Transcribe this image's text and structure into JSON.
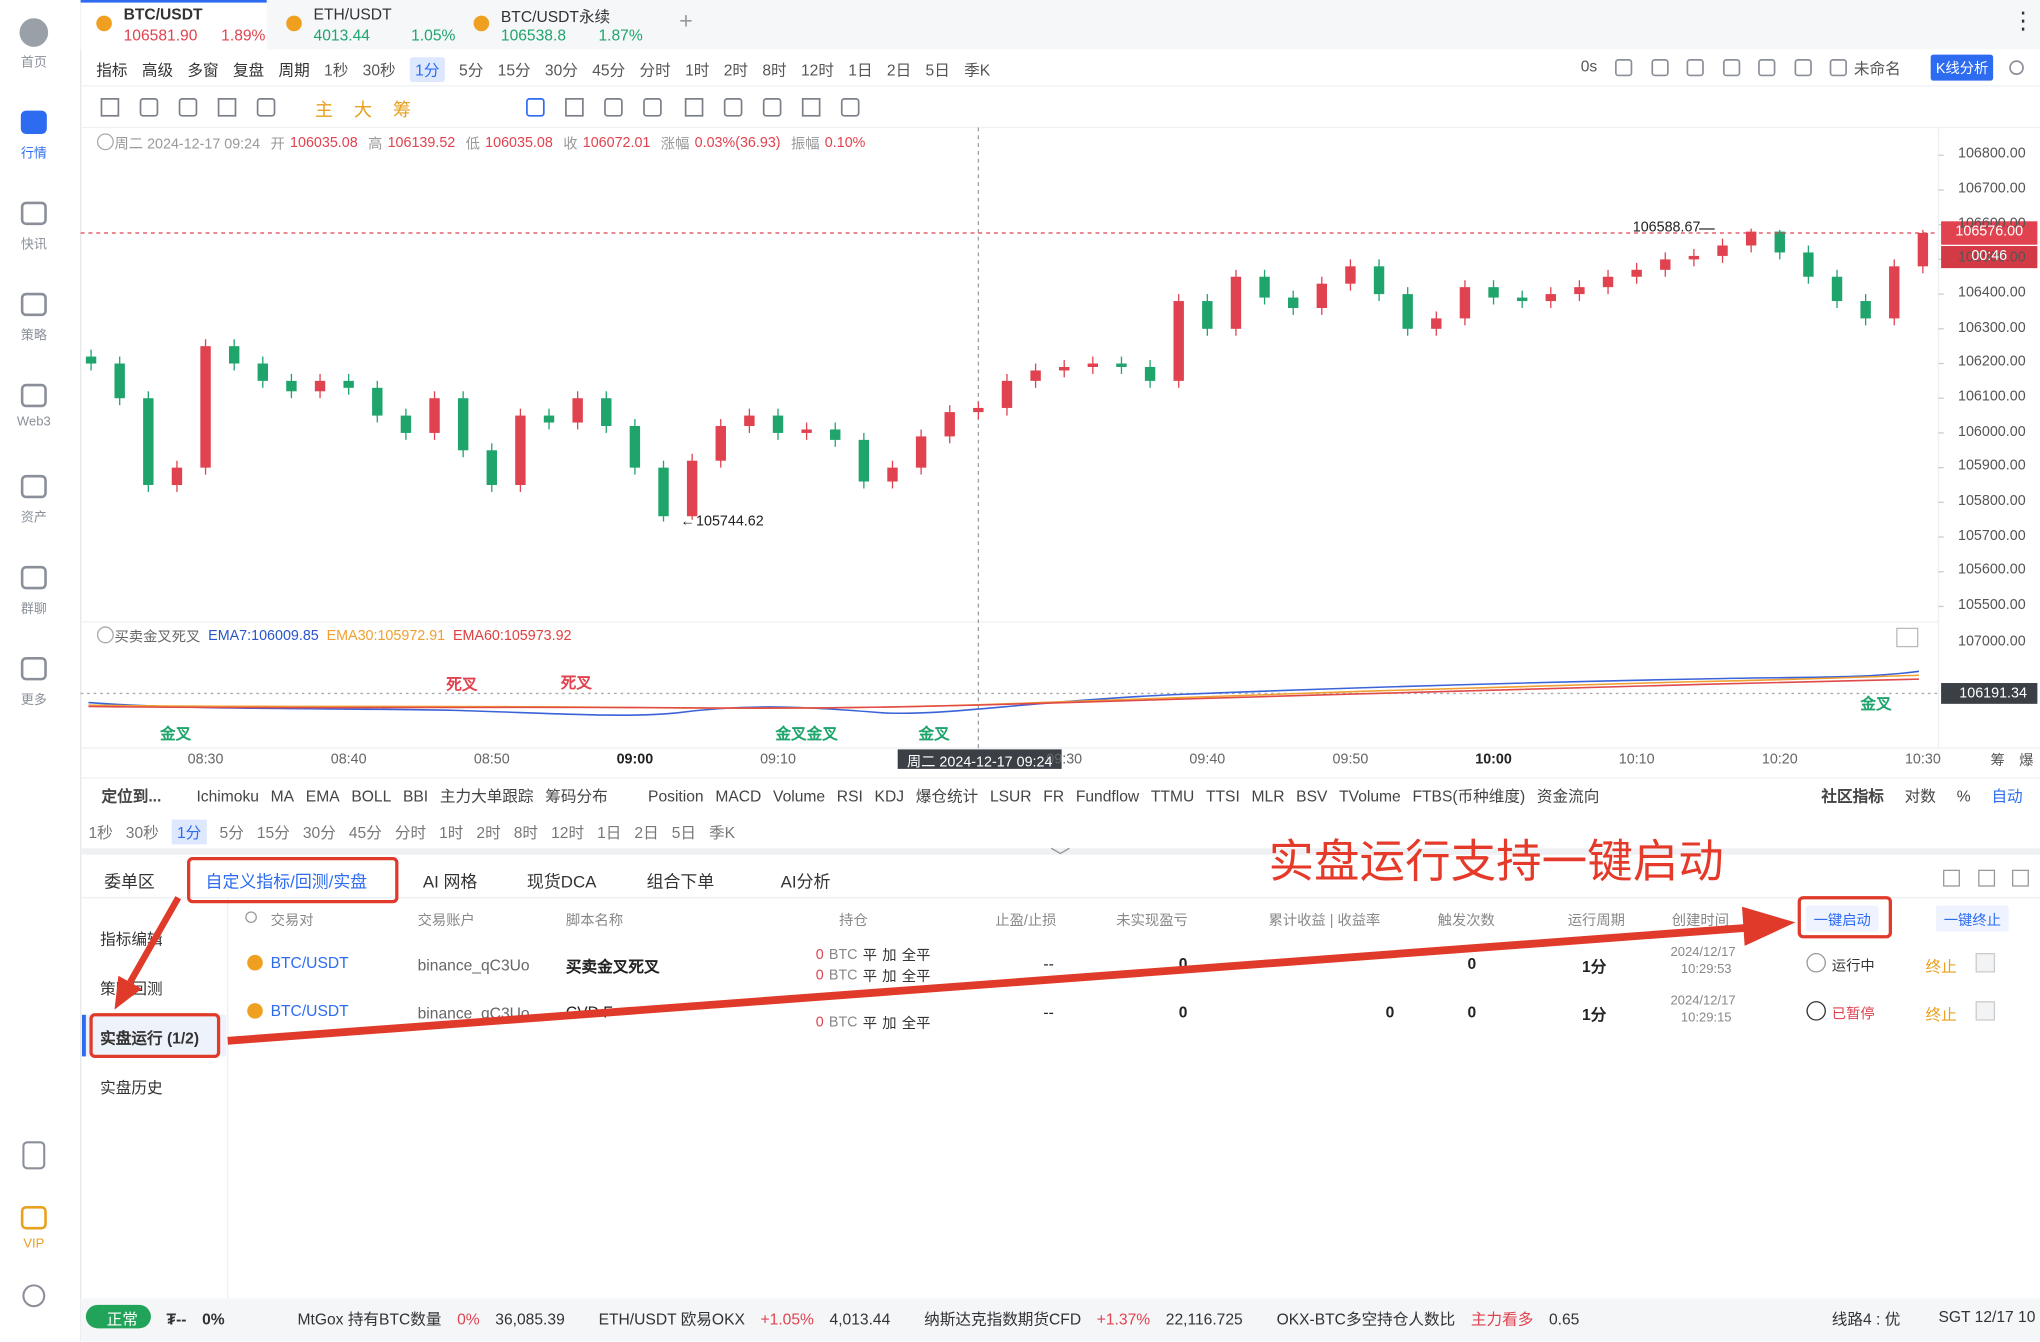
{
  "sidebar": [
    "首页",
    "行情",
    "快讯",
    "策略",
    "Web3",
    "资产",
    "群聊",
    "更多",
    "VIP"
  ],
  "tabs": [
    {
      "symbol": "BTC/USDT",
      "price": "106581.90",
      "change": "1.89%"
    },
    {
      "symbol": "ETH/USDT",
      "price": "4013.44",
      "change": "1.05%"
    },
    {
      "symbol": "BTC/USDT永续",
      "price": "106538.8",
      "change": "1.87%"
    }
  ],
  "toolbar": {
    "left": [
      "指标",
      "高级",
      "多窗",
      "复盘",
      "周期"
    ],
    "periods": [
      "1秒",
      "30秒",
      "1分",
      "5分",
      "15分",
      "30分",
      "45分",
      "分时",
      "1时",
      "2时",
      "8时",
      "12时",
      "1日",
      "2日",
      "5日",
      "季K"
    ],
    "active_period": "1分",
    "right": [
      "0s",
      "未命名",
      "K线分析"
    ]
  },
  "drawing_tools": [
    "主",
    "大",
    "筹"
  ],
  "ohlc": {
    "date": "周二 2024-12-17 09:24",
    "fields": [
      {
        "label": "开",
        "value": "106035.08"
      },
      {
        "label": "高",
        "value": "106139.52"
      },
      {
        "label": "低",
        "value": "106035.08"
      },
      {
        "label": "收",
        "value": "106072.01"
      },
      {
        "label": "涨幅",
        "value": "0.03%(36.93)"
      },
      {
        "label": "振幅",
        "value": "0.10%"
      }
    ]
  },
  "chart_data": {
    "type": "candlestick",
    "up_color": "#e0424f",
    "down_color": "#1fa46c",
    "ylim": [
      105450,
      106880
    ],
    "yticks": [
      {
        "value": 106800,
        "label": "106800.00"
      },
      {
        "value": 106700,
        "label": "106700.00"
      },
      {
        "value": 106600,
        "label": "106600.00"
      },
      {
        "value": 106500,
        "label": "106500.00"
      },
      {
        "value": 106400,
        "label": "106400.00"
      },
      {
        "value": 106300,
        "label": "106300.00"
      },
      {
        "value": 106200,
        "label": "106200.00"
      },
      {
        "value": 106100,
        "label": "106100.00"
      },
      {
        "value": 106000,
        "label": "106000.00"
      },
      {
        "value": 105900,
        "label": "105900.00"
      },
      {
        "value": 105800,
        "label": "105800.00"
      },
      {
        "value": 105700,
        "label": "105700.00"
      },
      {
        "value": 105600,
        "label": "105600.00"
      },
      {
        "value": 105500,
        "label": "105500.00"
      }
    ],
    "xticks": [
      "08:30",
      "08:40",
      "08:50",
      "09:00",
      "09:10",
      "09:30",
      "09:40",
      "09:50",
      "10:00",
      "10:10",
      "10:20",
      "10:30"
    ],
    "last_price": {
      "value": 106576,
      "label": "106576.00"
    },
    "countdown": "00:46",
    "high_label": 106588.67,
    "low_label": 105744.62,
    "crosshair_label": "周二 2024-12-17 09:24",
    "candles": [
      [
        106220,
        106240,
        106180,
        106200
      ],
      [
        106200,
        106220,
        106080,
        106100
      ],
      [
        106100,
        106120,
        105830,
        105850
      ],
      [
        105850,
        105920,
        105830,
        105900
      ],
      [
        105900,
        106270,
        105880,
        106250
      ],
      [
        106250,
        106270,
        106180,
        106200
      ],
      [
        106200,
        106220,
        106130,
        106150
      ],
      [
        106150,
        106170,
        106100,
        106120
      ],
      [
        106120,
        106170,
        106100,
        106150
      ],
      [
        106150,
        106170,
        106110,
        106130
      ],
      [
        106130,
        106150,
        106030,
        106050
      ],
      [
        106050,
        106070,
        105980,
        106000
      ],
      [
        106000,
        106120,
        105980,
        106100
      ],
      [
        106100,
        106120,
        105930,
        105950
      ],
      [
        105950,
        105970,
        105830,
        105850
      ],
      [
        105850,
        106070,
        105830,
        106050
      ],
      [
        106050,
        106070,
        106010,
        106030
      ],
      [
        106030,
        106120,
        106010,
        106100
      ],
      [
        106100,
        106120,
        106000,
        106020
      ],
      [
        106020,
        106040,
        105880,
        105900
      ],
      [
        105900,
        105920,
        105744.62,
        105760
      ],
      [
        105760,
        105940,
        105750,
        105920
      ],
      [
        105920,
        106040,
        105900,
        106020
      ],
      [
        106020,
        106070,
        106000,
        106050
      ],
      [
        106050,
        106070,
        105980,
        106000
      ],
      [
        106000,
        106030,
        105980,
        106010
      ],
      [
        106010,
        106030,
        105960,
        105980
      ],
      [
        105980,
        106000,
        105840,
        105860
      ],
      [
        105860,
        105920,
        105840,
        105900
      ],
      [
        105900,
        106010,
        105880,
        105990
      ],
      [
        105990,
        106080,
        105970,
        106060
      ],
      [
        106060,
        106090,
        106040,
        106072
      ],
      [
        106072,
        106170,
        106050,
        106150
      ],
      [
        106150,
        106200,
        106130,
        106180
      ],
      [
        106180,
        106210,
        106160,
        106190
      ],
      [
        106190,
        106220,
        106170,
        106200
      ],
      [
        106200,
        106220,
        106170,
        106190
      ],
      [
        106190,
        106210,
        106130,
        106150
      ],
      [
        106150,
        106400,
        106130,
        106380
      ],
      [
        106380,
        106400,
        106280,
        106300
      ],
      [
        106300,
        106470,
        106280,
        106450
      ],
      [
        106450,
        106470,
        106370,
        106390
      ],
      [
        106390,
        106410,
        106340,
        106360
      ],
      [
        106360,
        106450,
        106340,
        106430
      ],
      [
        106430,
        106500,
        106410,
        106480
      ],
      [
        106480,
        106500,
        106380,
        106400
      ],
      [
        106400,
        106420,
        106280,
        106300
      ],
      [
        106300,
        106350,
        106280,
        106330
      ],
      [
        106330,
        106440,
        106310,
        106420
      ],
      [
        106420,
        106440,
        106370,
        106390
      ],
      [
        106390,
        106410,
        106360,
        106380
      ],
      [
        106380,
        106420,
        106360,
        106400
      ],
      [
        106400,
        106440,
        106380,
        106420
      ],
      [
        106420,
        106470,
        106400,
        106450
      ],
      [
        106450,
        106490,
        106430,
        106470
      ],
      [
        106470,
        106520,
        106450,
        106500
      ],
      [
        106500,
        106530,
        106480,
        106510
      ],
      [
        106510,
        106560,
        106490,
        106540
      ],
      [
        106540,
        106588.67,
        106520,
        106580
      ],
      [
        106580,
        106585,
        106500,
        106520
      ],
      [
        106520,
        106540,
        106430,
        106450
      ],
      [
        106450,
        106470,
        106360,
        106380
      ],
      [
        106380,
        106400,
        106310,
        106330
      ],
      [
        106330,
        106500,
        106310,
        106480
      ],
      [
        106480,
        106585,
        106460,
        106576
      ]
    ]
  },
  "indicator": {
    "name": "买卖金叉死叉",
    "ema": [
      "EMA7:106009.85",
      "EMA30:105972.91",
      "EMA60:105973.92"
    ],
    "axis": [
      "107000.00",
      "106191.34"
    ],
    "signals": [
      "死叉",
      "死叉",
      "金叉",
      "金叉金叉",
      "金叉",
      "金叉"
    ]
  },
  "indicator_bar": {
    "locate": "定位到...",
    "items": [
      "Ichimoku",
      "MA",
      "EMA",
      "BOLL",
      "BBI",
      "主力大单跟踪",
      "筹码分布",
      "Position",
      "MACD",
      "Volume",
      "RSI",
      "KDJ",
      "爆仓统计",
      "LSUR",
      "FR",
      "Fundflow",
      "TTMU",
      "TTSI",
      "MLR",
      "BSV",
      "TVolume",
      "FTBS(币种维度)",
      "资金流向"
    ],
    "right": [
      "社区指标",
      "对数",
      "%",
      "自动"
    ],
    "axis_tools": [
      "筹",
      "爆"
    ]
  },
  "panel": {
    "tabs": [
      "委单区",
      "自定义指标/回测/实盘",
      "AI 网格",
      "现货DCA",
      "组合下单",
      "AI分析"
    ],
    "annotation": "实盘运行支持一键启动",
    "menu": [
      "指标编辑",
      "策略回测",
      "实盘运行 (1/2)",
      "实盘历史"
    ],
    "headers": [
      "交易对",
      "交易账户",
      "脚本名称",
      "持仓",
      "止盈/止损",
      "未实现盈亏",
      "累计收益 | 收益率",
      "触发次数",
      "运行周期",
      "创建时间"
    ],
    "buttons": [
      "一键启动",
      "一键终止"
    ],
    "rows": [
      {
        "pair": "BTC/USDT",
        "account": "binance_qC3Uo",
        "script": "买卖金叉死叉",
        "positions": [
          {
            "amount": "0",
            "unit": "BTC",
            "actions": [
              "平",
              "加",
              "全平"
            ]
          },
          {
            "amount": "0",
            "unit": "BTC",
            "actions": [
              "平",
              "加",
              "全平"
            ]
          }
        ],
        "sl": "--",
        "pnl": "0",
        "triggers": "0",
        "period": "1分",
        "created": [
          "2024/12/17",
          "10:29:53"
        ],
        "status": "运行中",
        "action": "终止"
      },
      {
        "pair": "BTC/USDT",
        "account": "binance_qC3Uo",
        "script": "CVD F",
        "positions": [
          {
            "amount": "0",
            "unit": "BTC",
            "actions": [
              "平",
              "加",
              "全平"
            ]
          }
        ],
        "sl": "--",
        "pnl": "0",
        "cum": "0",
        "triggers": "0",
        "period": "1分",
        "created": [
          "2024/12/17",
          "10:29:15"
        ],
        "status": "已暂停",
        "action": "终止"
      }
    ]
  },
  "status_bar": {
    "state": "正常",
    "asset": "₮--",
    "asset_change": "0%",
    "tickers": [
      {
        "name": "MtGox 持有BTC数量",
        "change": "0%",
        "value": "36,085.39"
      },
      {
        "name": "ETH/USDT 欧易OKX",
        "change": "+1.05%",
        "value": "4,013.44"
      },
      {
        "name": "纳斯达克指数期货CFD",
        "change": "+1.37%",
        "value": "22,116.725"
      },
      {
        "name": "OKX-BTC多空持仓人数比",
        "change": "主力看多",
        "value": "0.65"
      }
    ],
    "line": "线路4 : 优",
    "clock": "SGT 12/17 10"
  }
}
